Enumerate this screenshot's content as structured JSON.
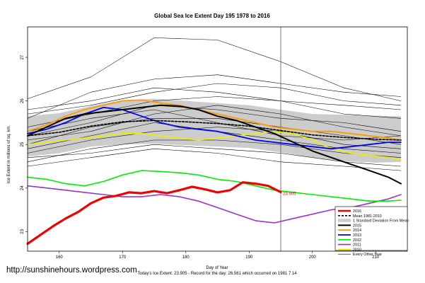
{
  "chart_data": {
    "type": "line",
    "title": "Global Sea Ice Extent Day 195 1978 to 2016",
    "xlabel": "Day of Year",
    "ylabel": "Ice Extent in millions of sq. km.",
    "xlim": [
      155,
      215
    ],
    "ylim": [
      22.55,
      27.7
    ],
    "x_ticks": [
      160,
      170,
      180,
      190,
      200,
      210
    ],
    "y_ticks": [
      23,
      24,
      25,
      26,
      27
    ],
    "current_day": 195,
    "grid": false,
    "legend_placement": "bottom-right",
    "std_band": {
      "name": "1 Standard Deviation From Mean",
      "x": [
        155,
        160,
        165,
        170,
        175,
        180,
        185,
        190,
        195,
        200,
        205,
        210,
        214
      ],
      "upper": [
        25.65,
        25.72,
        25.88,
        26.02,
        26.05,
        26.0,
        25.95,
        25.9,
        25.8,
        25.7,
        25.68,
        25.66,
        25.65
      ],
      "lower": [
        24.72,
        24.8,
        24.95,
        25.0,
        25.02,
        24.98,
        24.95,
        24.92,
        24.82,
        24.7,
        24.62,
        24.58,
        24.6
      ]
    },
    "series": [
      {
        "name": "2016",
        "color": "#ee0000",
        "width": 3.2,
        "x": [
          155,
          157,
          159,
          161,
          163,
          165,
          167,
          169,
          171,
          173,
          175,
          177,
          179,
          181,
          183,
          185,
          187,
          189,
          191,
          193,
          195
        ],
        "y": [
          22.72,
          22.92,
          23.12,
          23.3,
          23.45,
          23.65,
          23.78,
          23.82,
          23.9,
          23.88,
          23.93,
          23.88,
          23.95,
          24.03,
          23.97,
          23.9,
          23.95,
          24.13,
          24.1,
          24.05,
          23.905
        ]
      },
      {
        "name": "Mean 1981-2010",
        "color": "#000000",
        "width": 1.6,
        "dash": "3,2",
        "x": [
          155,
          160,
          165,
          170,
          175,
          180,
          185,
          190,
          195,
          200,
          205,
          210,
          214
        ],
        "y": [
          25.2,
          25.28,
          25.42,
          25.52,
          25.55,
          25.52,
          25.48,
          25.42,
          25.32,
          25.22,
          25.16,
          25.12,
          25.1
        ]
      },
      {
        "name": "2015",
        "color": "#000000",
        "width": 2.0,
        "x": [
          155,
          158,
          161,
          164,
          167,
          170,
          173,
          176,
          179,
          182,
          185,
          188,
          191,
          194,
          197,
          200,
          203,
          206,
          209,
          212,
          214
        ],
        "y": [
          25.2,
          25.4,
          25.6,
          25.7,
          25.75,
          25.8,
          25.85,
          25.9,
          25.88,
          25.8,
          25.65,
          25.55,
          25.4,
          25.25,
          25.05,
          24.85,
          24.7,
          24.55,
          24.4,
          24.25,
          24.1
        ]
      },
      {
        "name": "2014",
        "color": "#ff9900",
        "width": 1.8,
        "x": [
          155,
          158,
          161,
          164,
          167,
          170,
          173,
          176,
          179,
          182,
          185,
          188,
          191,
          194,
          197,
          200,
          203,
          206,
          209,
          212,
          214
        ],
        "y": [
          25.3,
          25.45,
          25.65,
          25.8,
          25.9,
          26.0,
          26.02,
          25.95,
          25.9,
          25.8,
          25.7,
          25.6,
          25.5,
          25.4,
          25.35,
          25.3,
          25.3,
          25.25,
          25.2,
          25.15,
          25.1
        ]
      },
      {
        "name": "2013",
        "color": "#0000ee",
        "width": 1.8,
        "x": [
          155,
          158,
          161,
          164,
          167,
          170,
          173,
          176,
          179,
          182,
          185,
          188,
          191,
          194,
          197,
          200,
          203,
          206,
          209,
          212,
          214
        ],
        "y": [
          25.25,
          25.35,
          25.5,
          25.7,
          25.85,
          25.8,
          25.65,
          25.5,
          25.4,
          25.35,
          25.3,
          25.2,
          25.1,
          25.05,
          25.0,
          24.95,
          24.9,
          24.95,
          25.0,
          25.05,
          25.05
        ]
      },
      {
        "name": "2012",
        "color": "#00ee00",
        "width": 1.6,
        "x": [
          155,
          158,
          161,
          164,
          167,
          170,
          173,
          176,
          179,
          182,
          185,
          188,
          191,
          194,
          197,
          200,
          203,
          206,
          209,
          212,
          214
        ],
        "y": [
          24.25,
          24.2,
          24.1,
          24.05,
          24.15,
          24.3,
          24.4,
          24.38,
          24.35,
          24.3,
          24.2,
          24.15,
          24.05,
          23.95,
          23.9,
          23.85,
          23.8,
          23.75,
          23.7,
          23.7,
          23.72
        ]
      },
      {
        "name": "2011",
        "color": "#9933cc",
        "width": 1.6,
        "x": [
          155,
          158,
          161,
          164,
          167,
          170,
          173,
          176,
          179,
          182,
          185,
          188,
          191,
          194,
          197,
          200,
          203,
          206,
          209,
          212,
          214
        ],
        "y": [
          24.05,
          24.0,
          23.95,
          23.9,
          23.85,
          23.8,
          23.8,
          23.85,
          23.8,
          23.7,
          23.55,
          23.4,
          23.25,
          23.2,
          23.3,
          23.4,
          23.5,
          23.55,
          23.65,
          23.75,
          23.85
        ]
      },
      {
        "name": "2010",
        "color": "#eeee00",
        "width": 1.6,
        "x": [
          155,
          158,
          161,
          164,
          167,
          170,
          173,
          176,
          179,
          182,
          185,
          188,
          191,
          194,
          197,
          200,
          203,
          206,
          209,
          212,
          214
        ],
        "y": [
          25.0,
          25.05,
          25.1,
          25.15,
          25.2,
          25.25,
          25.25,
          25.2,
          25.15,
          25.1,
          25.15,
          25.2,
          25.25,
          25.3,
          25.25,
          25.1,
          24.9,
          24.8,
          24.75,
          24.7,
          24.65
        ]
      },
      {
        "name": "Every Other Year",
        "color": "#000000",
        "width": 0.55,
        "role": "spaghetti",
        "lines": [
          {
            "x": [
              155,
              165,
              175,
              185,
              195,
              205,
              214
            ],
            "y": [
              26.05,
              26.55,
              27.45,
              27.4,
              26.9,
              26.3,
              26.0
            ]
          },
          {
            "x": [
              155,
              165,
              175,
              185,
              195,
              205,
              214
            ],
            "y": [
              25.6,
              26.2,
              26.5,
              26.6,
              26.4,
              26.2,
              26.1
            ]
          },
          {
            "x": [
              155,
              165,
              175,
              185,
              195,
              205,
              214
            ],
            "y": [
              25.8,
              26.0,
              26.3,
              26.2,
              26.0,
              25.9,
              25.8
            ]
          },
          {
            "x": [
              155,
              165,
              175,
              185,
              195,
              205,
              214
            ],
            "y": [
              25.4,
              25.7,
              26.0,
              26.1,
              26.0,
              25.7,
              25.6
            ]
          },
          {
            "x": [
              155,
              165,
              175,
              185,
              195,
              205,
              214
            ],
            "y": [
              25.2,
              25.5,
              25.9,
              25.8,
              25.6,
              25.5,
              25.3
            ]
          },
          {
            "x": [
              155,
              165,
              175,
              185,
              195,
              205,
              214
            ],
            "y": [
              25.0,
              25.4,
              25.6,
              25.6,
              25.4,
              25.2,
              25.0
            ]
          },
          {
            "x": [
              155,
              165,
              175,
              185,
              195,
              205,
              214
            ],
            "y": [
              24.8,
              25.1,
              25.3,
              25.4,
              25.3,
              25.0,
              24.9
            ]
          },
          {
            "x": [
              155,
              165,
              175,
              185,
              195,
              205,
              214
            ],
            "y": [
              24.6,
              24.9,
              25.1,
              25.1,
              25.0,
              24.8,
              24.7
            ]
          },
          {
            "x": [
              155,
              165,
              175,
              185,
              195,
              205,
              214
            ],
            "y": [
              24.5,
              24.7,
              24.9,
              24.8,
              24.6,
              24.5,
              24.4
            ]
          },
          {
            "x": [
              155,
              165,
              175,
              185,
              195,
              205,
              214
            ],
            "y": [
              25.1,
              25.3,
              25.7,
              25.9,
              25.7,
              25.4,
              25.2
            ]
          },
          {
            "x": [
              155,
              165,
              175,
              185,
              195,
              205,
              214
            ],
            "y": [
              25.7,
              25.9,
              26.2,
              26.4,
              26.3,
              26.0,
              25.9
            ]
          },
          {
            "x": [
              155,
              165,
              175,
              185,
              195,
              205,
              214
            ],
            "y": [
              24.9,
              25.2,
              25.5,
              25.3,
              25.1,
              24.9,
              24.8
            ]
          },
          {
            "x": [
              155,
              165,
              175,
              185,
              195,
              205,
              214
            ],
            "y": [
              24.7,
              24.8,
              25.0,
              24.9,
              24.8,
              24.6,
              24.5
            ]
          },
          {
            "x": [
              155,
              165,
              175,
              185,
              195,
              205,
              214
            ],
            "y": [
              25.3,
              25.6,
              25.8,
              25.5,
              25.2,
              25.1,
              25.2
            ]
          }
        ]
      }
    ],
    "annotation": {
      "text": "23.905",
      "x": 195,
      "y": 23.905,
      "color": "#ee0000"
    },
    "caption": {
      "xlabel_line": "Day of Year",
      "record_line": "Today's Ice Extent: 23.905  - Record for the day: 26.561 which occurred on 1981 7 14"
    }
  },
  "url": "http://sunshinehours.wordpress.com"
}
